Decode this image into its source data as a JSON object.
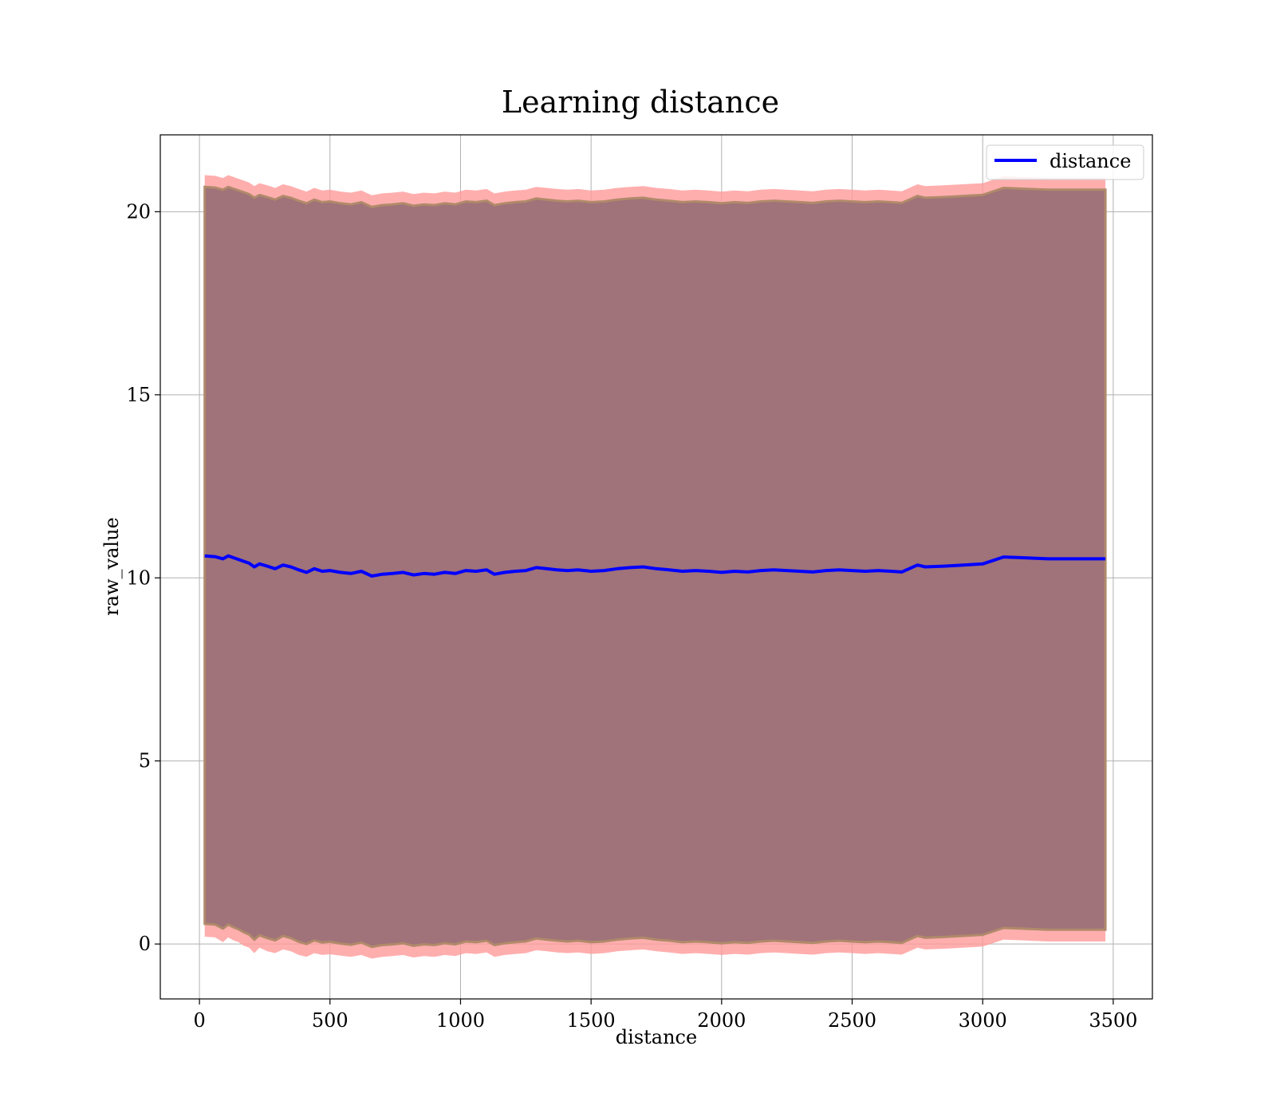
{
  "chart_data": {
    "type": "line",
    "title": "Learning distance",
    "xlabel": "distance",
    "ylabel": "raw_value",
    "xlim": [
      -150,
      3650
    ],
    "ylim": [
      -1.5,
      22.1
    ],
    "xticks": [
      0,
      500,
      1000,
      1500,
      2000,
      2500,
      3000,
      3500
    ],
    "yticks": [
      0,
      5,
      10,
      15,
      20
    ],
    "grid": true,
    "legend": {
      "placement": "top-right",
      "entries": [
        "distance"
      ]
    },
    "colors": {
      "line": "#0000ff",
      "outer_band": "#ff9a9a",
      "inner_band": "#a0727a",
      "band_edge": "#b08a6a"
    },
    "series": [
      {
        "name": "distance",
        "x": [
          20,
          60,
          90,
          110,
          130,
          150,
          170,
          190,
          210,
          230,
          260,
          290,
          320,
          350,
          380,
          410,
          440,
          470,
          500,
          540,
          580,
          620,
          660,
          700,
          740,
          780,
          820,
          860,
          900,
          940,
          980,
          1020,
          1060,
          1100,
          1130,
          1170,
          1210,
          1250,
          1290,
          1330,
          1370,
          1410,
          1450,
          1500,
          1550,
          1600,
          1650,
          1700,
          1750,
          1800,
          1850,
          1900,
          1950,
          2000,
          2050,
          2100,
          2150,
          2200,
          2250,
          2300,
          2350,
          2400,
          2450,
          2500,
          2550,
          2600,
          2650,
          2690,
          2750,
          2780,
          2850,
          2900,
          3000,
          3080,
          3150,
          3250,
          3350,
          3470
        ],
        "y": [
          10.6,
          10.58,
          10.52,
          10.6,
          10.55,
          10.5,
          10.45,
          10.4,
          10.3,
          10.38,
          10.32,
          10.25,
          10.35,
          10.3,
          10.22,
          10.15,
          10.25,
          10.18,
          10.2,
          10.15,
          10.12,
          10.18,
          10.05,
          10.1,
          10.12,
          10.15,
          10.08,
          10.12,
          10.1,
          10.15,
          10.12,
          10.2,
          10.18,
          10.22,
          10.1,
          10.15,
          10.18,
          10.2,
          10.28,
          10.25,
          10.22,
          10.2,
          10.22,
          10.18,
          10.2,
          10.25,
          10.28,
          10.3,
          10.25,
          10.22,
          10.18,
          10.2,
          10.18,
          10.15,
          10.18,
          10.16,
          10.2,
          10.22,
          10.2,
          10.18,
          10.16,
          10.2,
          10.22,
          10.2,
          10.18,
          10.2,
          10.18,
          10.16,
          10.35,
          10.3,
          10.32,
          10.34,
          10.38,
          10.57,
          10.55,
          10.52,
          10.52,
          10.52
        ]
      }
    ],
    "bands": [
      {
        "kind": "outer",
        "lower": [
          0.2,
          0.18,
          0.05,
          0.18,
          0.1,
          0.05,
          -0.05,
          -0.1,
          -0.25,
          -0.1,
          -0.2,
          -0.25,
          -0.15,
          -0.2,
          -0.3,
          -0.35,
          -0.25,
          -0.3,
          -0.28,
          -0.32,
          -0.35,
          -0.3,
          -0.4,
          -0.35,
          -0.33,
          -0.3,
          -0.37,
          -0.33,
          -0.35,
          -0.3,
          -0.33,
          -0.25,
          -0.27,
          -0.23,
          -0.35,
          -0.3,
          -0.27,
          -0.25,
          -0.17,
          -0.2,
          -0.23,
          -0.25,
          -0.23,
          -0.27,
          -0.25,
          -0.2,
          -0.17,
          -0.15,
          -0.2,
          -0.23,
          -0.27,
          -0.25,
          -0.27,
          -0.3,
          -0.27,
          -0.29,
          -0.25,
          -0.23,
          -0.25,
          -0.27,
          -0.29,
          -0.25,
          -0.23,
          -0.25,
          -0.27,
          -0.25,
          -0.27,
          -0.29,
          -0.1,
          -0.15,
          -0.13,
          -0.11,
          -0.07,
          0.12,
          0.1,
          0.07,
          0.07,
          0.07
        ],
        "upper": [
          21.0,
          20.98,
          20.92,
          21.0,
          20.95,
          20.9,
          20.85,
          20.8,
          20.7,
          20.78,
          20.72,
          20.65,
          20.75,
          20.7,
          20.62,
          20.55,
          20.65,
          20.58,
          20.6,
          20.55,
          20.52,
          20.58,
          20.45,
          20.5,
          20.52,
          20.55,
          20.48,
          20.52,
          20.5,
          20.55,
          20.52,
          20.6,
          20.58,
          20.62,
          20.5,
          20.55,
          20.58,
          20.6,
          20.68,
          20.65,
          20.62,
          20.6,
          20.62,
          20.58,
          20.6,
          20.65,
          20.68,
          20.7,
          20.65,
          20.62,
          20.58,
          20.6,
          20.58,
          20.55,
          20.58,
          20.56,
          20.6,
          20.62,
          20.6,
          20.58,
          20.56,
          20.6,
          20.62,
          20.6,
          20.58,
          20.6,
          20.58,
          20.56,
          20.75,
          20.7,
          20.72,
          20.74,
          20.78,
          20.97,
          20.95,
          20.92,
          20.92,
          20.92
        ]
      },
      {
        "kind": "inner",
        "lower": [
          0.55,
          0.53,
          0.42,
          0.53,
          0.46,
          0.4,
          0.32,
          0.26,
          0.12,
          0.24,
          0.16,
          0.1,
          0.22,
          0.16,
          0.06,
          0.0,
          0.1,
          0.04,
          0.06,
          0.01,
          -0.02,
          0.04,
          -0.08,
          -0.03,
          -0.01,
          0.02,
          -0.05,
          -0.01,
          -0.03,
          0.02,
          -0.01,
          0.07,
          0.05,
          0.09,
          -0.03,
          0.02,
          0.05,
          0.07,
          0.15,
          0.12,
          0.09,
          0.07,
          0.09,
          0.05,
          0.07,
          0.12,
          0.15,
          0.17,
          0.12,
          0.09,
          0.05,
          0.07,
          0.05,
          0.02,
          0.05,
          0.03,
          0.07,
          0.09,
          0.07,
          0.05,
          0.03,
          0.07,
          0.09,
          0.07,
          0.05,
          0.07,
          0.05,
          0.03,
          0.22,
          0.17,
          0.19,
          0.21,
          0.25,
          0.44,
          0.42,
          0.39,
          0.39,
          0.39
        ],
        "upper": [
          20.68,
          20.66,
          20.6,
          20.68,
          20.63,
          20.58,
          20.53,
          20.48,
          20.38,
          20.46,
          20.4,
          20.33,
          20.43,
          20.38,
          20.3,
          20.23,
          20.33,
          20.26,
          20.28,
          20.23,
          20.2,
          20.26,
          20.13,
          20.18,
          20.2,
          20.23,
          20.16,
          20.2,
          20.18,
          20.23,
          20.2,
          20.28,
          20.26,
          20.3,
          20.18,
          20.23,
          20.26,
          20.28,
          20.36,
          20.33,
          20.3,
          20.28,
          20.3,
          20.26,
          20.28,
          20.33,
          20.36,
          20.38,
          20.33,
          20.3,
          20.26,
          20.28,
          20.26,
          20.23,
          20.26,
          20.24,
          20.28,
          20.3,
          20.28,
          20.26,
          20.24,
          20.28,
          20.3,
          20.28,
          20.26,
          20.28,
          20.26,
          20.24,
          20.43,
          20.38,
          20.4,
          20.42,
          20.46,
          20.65,
          20.63,
          20.6,
          20.6,
          20.6
        ]
      }
    ]
  }
}
